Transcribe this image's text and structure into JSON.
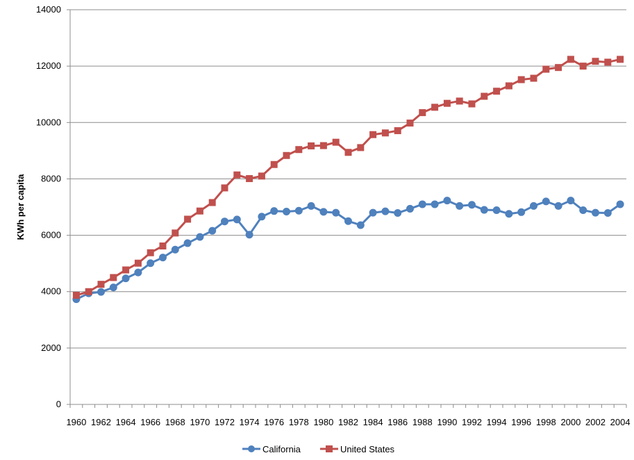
{
  "chart_data": {
    "type": "line",
    "title": "",
    "xlabel": "",
    "ylabel": "KWh per capita",
    "ylim": [
      0,
      14000
    ],
    "yticks": [
      0,
      2000,
      4000,
      6000,
      8000,
      10000,
      12000,
      14000
    ],
    "grid": "horizontal",
    "legend_position": "bottom",
    "x": [
      1960,
      1961,
      1962,
      1963,
      1964,
      1965,
      1966,
      1967,
      1968,
      1969,
      1970,
      1971,
      1972,
      1973,
      1974,
      1975,
      1976,
      1977,
      1978,
      1979,
      1980,
      1981,
      1982,
      1983,
      1984,
      1985,
      1986,
      1987,
      1988,
      1989,
      1990,
      1991,
      1992,
      1993,
      1994,
      1995,
      1996,
      1997,
      1998,
      1999,
      2000,
      2001,
      2002,
      2003,
      2004
    ],
    "xtick_labels": [
      "1960",
      "1962",
      "1964",
      "1966",
      "1968",
      "1970",
      "1972",
      "1974",
      "1976",
      "1978",
      "1980",
      "1982",
      "1984",
      "1986",
      "1988",
      "1990",
      "1992",
      "1994",
      "1996",
      "1998",
      "2000",
      "2002",
      "2004"
    ],
    "series": [
      {
        "name": "California",
        "color": "#4f81bd",
        "marker": "circle",
        "values": [
          3730,
          3940,
          3990,
          4150,
          4470,
          4680,
          5010,
          5210,
          5490,
          5720,
          5940,
          6160,
          6490,
          6560,
          6020,
          6660,
          6860,
          6840,
          6870,
          7040,
          6830,
          6800,
          6500,
          6360,
          6800,
          6850,
          6790,
          6940,
          7100,
          7100,
          7230,
          7040,
          7080,
          6900,
          6890,
          6760,
          6820,
          7040,
          7200,
          7040,
          7230,
          6890,
          6800,
          6790,
          7100
        ]
      },
      {
        "name": "United States",
        "color": "#c0504d",
        "marker": "square",
        "values": [
          3870,
          4000,
          4260,
          4500,
          4770,
          5010,
          5380,
          5620,
          6080,
          6570,
          6860,
          7160,
          7680,
          8140,
          8010,
          8100,
          8510,
          8830,
          9040,
          9170,
          9180,
          9300,
          8940,
          9110,
          9570,
          9630,
          9710,
          9980,
          10350,
          10540,
          10680,
          10760,
          10660,
          10930,
          11110,
          11300,
          11520,
          11570,
          11890,
          11950,
          12240,
          12000,
          12170,
          12140,
          12240
        ]
      }
    ]
  }
}
